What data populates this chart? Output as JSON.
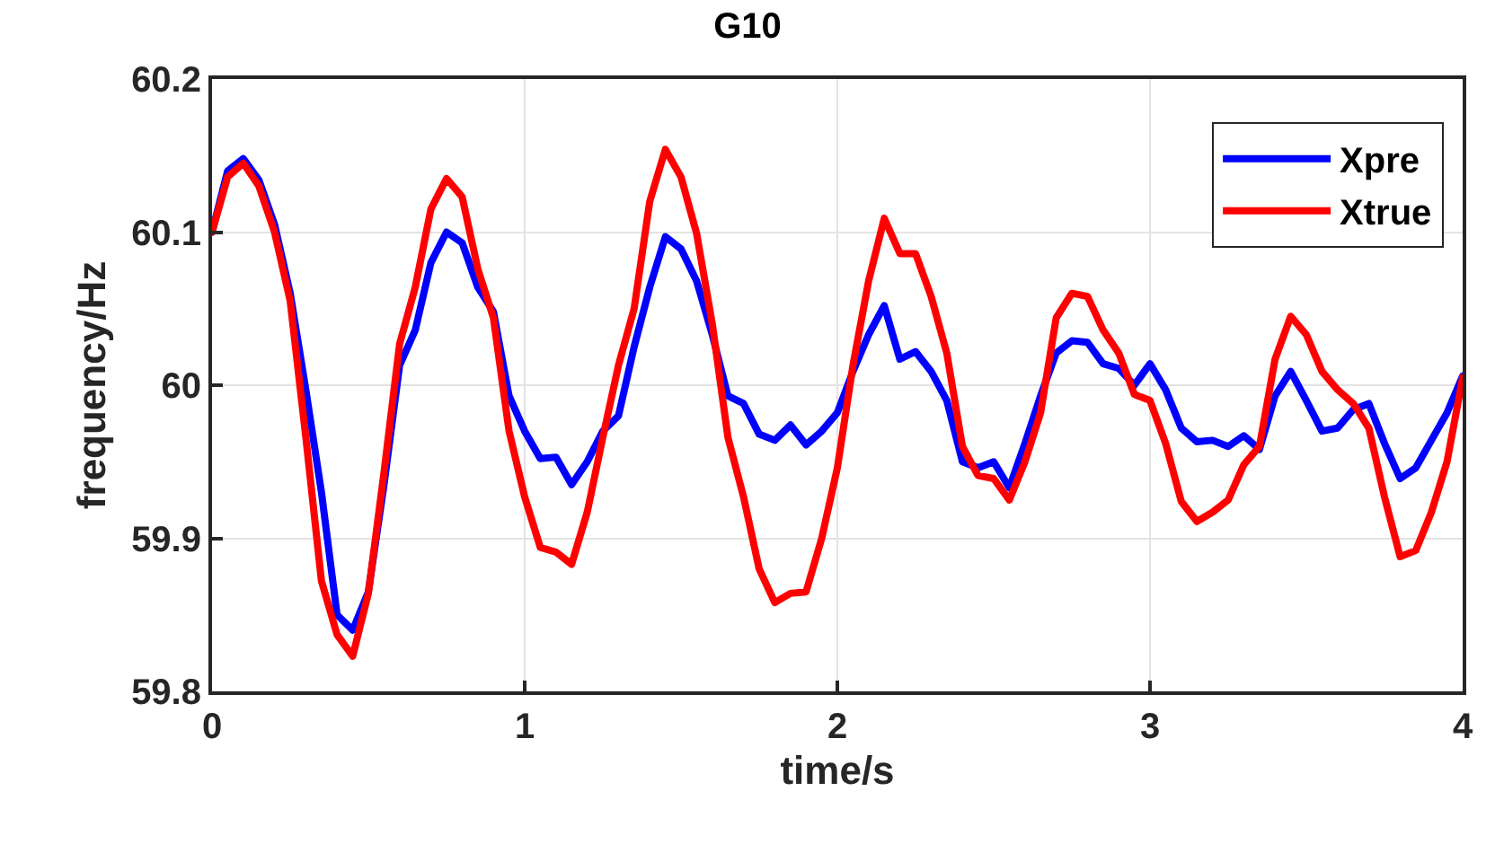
{
  "chart_data": {
    "type": "line",
    "title": "G10",
    "xlabel": "time/s",
    "ylabel": "frequency/Hz",
    "x": [
      0,
      0.05,
      0.1,
      0.15,
      0.2,
      0.25,
      0.3,
      0.35,
      0.4,
      0.45,
      0.5,
      0.55,
      0.6,
      0.65,
      0.7,
      0.75,
      0.8,
      0.85,
      0.9,
      0.95,
      1,
      1.05,
      1.1,
      1.15,
      1.2,
      1.25,
      1.3,
      1.35,
      1.4,
      1.45,
      1.5,
      1.55,
      1.6,
      1.65,
      1.7,
      1.75,
      1.8,
      1.85,
      1.9,
      1.95,
      2,
      2.05,
      2.1,
      2.15,
      2.2,
      2.25,
      2.3,
      2.35,
      2.4,
      2.45,
      2.5,
      2.55,
      2.6,
      2.65,
      2.7,
      2.75,
      2.8,
      2.85,
      2.9,
      2.95,
      3,
      3.05,
      3.1,
      3.15,
      3.2,
      3.25,
      3.3,
      3.35,
      3.4,
      3.45,
      3.5,
      3.55,
      3.6,
      3.65,
      3.7,
      3.75,
      3.8,
      3.85,
      3.9,
      3.95,
      4
    ],
    "series": [
      {
        "name": "Xpre",
        "color": "#0000ff",
        "values": [
          60.1,
          60.14,
          60.148,
          60.134,
          60.105,
          60.06,
          59.997,
          59.93,
          59.85,
          59.84,
          59.865,
          59.935,
          60.013,
          60.036,
          60.08,
          60.1,
          60.093,
          60.064,
          60.048,
          59.993,
          59.97,
          59.952,
          59.953,
          59.935,
          59.95,
          59.97,
          59.98,
          60.025,
          60.064,
          60.097,
          60.089,
          60.068,
          60.033,
          59.993,
          59.988,
          59.968,
          59.964,
          59.974,
          59.961,
          59.97,
          59.982,
          60.009,
          60.033,
          60.052,
          60.017,
          60.022,
          60.009,
          59.99,
          59.95,
          59.946,
          59.95,
          59.933,
          59.962,
          59.993,
          60.021,
          60.029,
          60.028,
          60.014,
          60.011,
          60.0,
          60.014,
          59.997,
          59.972,
          59.963,
          59.964,
          59.96,
          59.967,
          59.958,
          59.993,
          60.009,
          59.99,
          59.97,
          59.972,
          59.984,
          59.988,
          59.962,
          59.939,
          59.946,
          59.964,
          59.982,
          60.006
        ]
      },
      {
        "name": "Xtrue",
        "color": "#ff0000",
        "values": [
          60.1,
          60.136,
          60.145,
          60.13,
          60.1,
          60.055,
          59.966,
          59.872,
          59.837,
          59.823,
          59.864,
          59.943,
          60.027,
          60.064,
          60.115,
          60.135,
          60.123,
          60.076,
          60.044,
          59.97,
          59.927,
          59.894,
          59.891,
          59.883,
          59.917,
          59.966,
          60.013,
          60.05,
          60.12,
          60.154,
          60.136,
          60.099,
          60.04,
          59.966,
          59.927,
          59.88,
          59.858,
          59.864,
          59.865,
          59.9,
          59.946,
          60.013,
          60.068,
          60.109,
          60.086,
          60.086,
          60.058,
          60.021,
          59.96,
          59.941,
          59.939,
          59.925,
          59.95,
          59.982,
          60.044,
          60.06,
          60.058,
          60.036,
          60.021,
          59.994,
          59.99,
          59.962,
          59.924,
          59.911,
          59.917,
          59.925,
          59.948,
          59.96,
          60.017,
          60.045,
          60.033,
          60.009,
          59.997,
          59.988,
          59.972,
          59.927,
          59.888,
          59.892,
          59.917,
          59.95,
          60.005
        ]
      }
    ],
    "xlim": [
      0,
      4
    ],
    "xticks": [
      0,
      1,
      2,
      3,
      4
    ],
    "ylim": [
      59.8,
      60.2
    ],
    "yticks": [
      59.8,
      59.9,
      {
        "value": 60,
        "label": "60"
      },
      60.1,
      60.2
    ],
    "grid": true,
    "legend": "top right",
    "marker": "none",
    "line_style": "solid"
  }
}
